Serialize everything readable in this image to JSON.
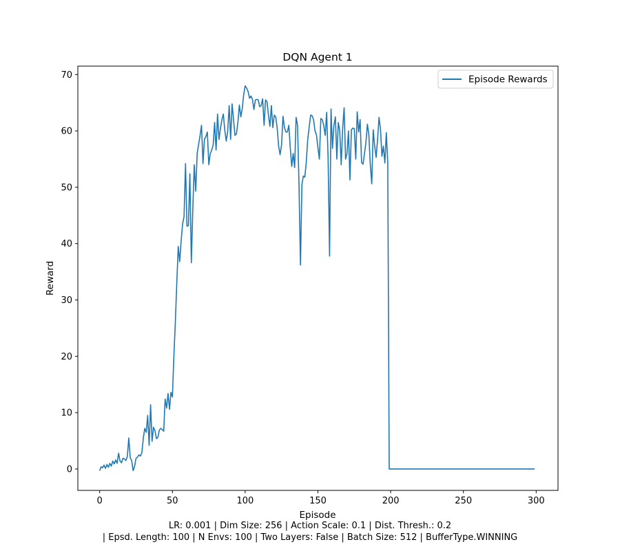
{
  "chart_data": {
    "type": "line",
    "title": "DQN Agent 1",
    "xlabel": "Episode",
    "ylabel": "Reward",
    "xlim": [
      -15,
      315
    ],
    "ylim": [
      -3.8,
      71.5
    ],
    "xticks": [
      0,
      50,
      100,
      150,
      200,
      250,
      300
    ],
    "yticks": [
      0,
      10,
      20,
      30,
      40,
      50,
      60,
      70
    ],
    "grid": false,
    "legend_position": "top-right",
    "series": [
      {
        "name": "Episode Rewards",
        "color": "#1f77b4",
        "points": [
          [
            0,
            -0.3
          ],
          [
            1,
            0.4
          ],
          [
            2,
            0.2
          ],
          [
            3,
            0.7
          ],
          [
            4,
            0.1
          ],
          [
            5,
            0.8
          ],
          [
            6,
            0.3
          ],
          [
            7,
            1.0
          ],
          [
            8,
            0.5
          ],
          [
            9,
            1.4
          ],
          [
            10,
            0.9
          ],
          [
            11,
            1.6
          ],
          [
            12,
            1.0
          ],
          [
            13,
            2.8
          ],
          [
            14,
            1.4
          ],
          [
            15,
            1.1
          ],
          [
            16,
            1.9
          ],
          [
            17,
            1.8
          ],
          [
            18,
            1.5
          ],
          [
            19,
            2.2
          ],
          [
            20,
            5.5
          ],
          [
            21,
            2.0
          ],
          [
            22,
            1.5
          ],
          [
            23,
            -0.3
          ],
          [
            24,
            0.5
          ],
          [
            25,
            1.9
          ],
          [
            26,
            2.1
          ],
          [
            27,
            2.5
          ],
          [
            28,
            2.3
          ],
          [
            29,
            2.9
          ],
          [
            30,
            5.5
          ],
          [
            31,
            7.2
          ],
          [
            32,
            6.5
          ],
          [
            33,
            9.5
          ],
          [
            34,
            4.2
          ],
          [
            35,
            11.4
          ],
          [
            36,
            4.9
          ],
          [
            37,
            7.4
          ],
          [
            38,
            6.8
          ],
          [
            39,
            5.4
          ],
          [
            40,
            5.6
          ],
          [
            41,
            6.9
          ],
          [
            42,
            7.2
          ],
          [
            43,
            7.0
          ],
          [
            44,
            6.7
          ],
          [
            45,
            12.4
          ],
          [
            46,
            10.8
          ],
          [
            47,
            13.4
          ],
          [
            48,
            10.6
          ],
          [
            49,
            13.6
          ],
          [
            50,
            12.8
          ],
          [
            51,
            20.0
          ],
          [
            52,
            26.0
          ],
          [
            53,
            33.0
          ],
          [
            54,
            39.5
          ],
          [
            55,
            36.8
          ],
          [
            56,
            40.5
          ],
          [
            57,
            43.5
          ],
          [
            58,
            44.8
          ],
          [
            59,
            54.2
          ],
          [
            60,
            43.1
          ],
          [
            61,
            43.2
          ],
          [
            62,
            52.4
          ],
          [
            63,
            36.6
          ],
          [
            64,
            46.0
          ],
          [
            65,
            54.0
          ],
          [
            66,
            49.3
          ],
          [
            67,
            56.0
          ],
          [
            68,
            57.6
          ],
          [
            69,
            59.2
          ],
          [
            70,
            61.0
          ],
          [
            71,
            54.2
          ],
          [
            72,
            58.5
          ],
          [
            73,
            59.0
          ],
          [
            74,
            59.8
          ],
          [
            75,
            54.0
          ],
          [
            76,
            56.0
          ],
          [
            77,
            56.6
          ],
          [
            78,
            57.5
          ],
          [
            79,
            61.5
          ],
          [
            80,
            56.6
          ],
          [
            81,
            63.0
          ],
          [
            82,
            58.5
          ],
          [
            83,
            60.4
          ],
          [
            84,
            62.0
          ],
          [
            85,
            63.0
          ],
          [
            86,
            60.1
          ],
          [
            87,
            58.2
          ],
          [
            88,
            60.0
          ],
          [
            89,
            64.5
          ],
          [
            90,
            58.5
          ],
          [
            91,
            64.8
          ],
          [
            92,
            62.0
          ],
          [
            93,
            59.2
          ],
          [
            94,
            59.5
          ],
          [
            95,
            61.5
          ],
          [
            96,
            64.6
          ],
          [
            97,
            62.5
          ],
          [
            98,
            64.0
          ],
          [
            99,
            66.5
          ],
          [
            100,
            68.0
          ],
          [
            101,
            67.6
          ],
          [
            102,
            67.0
          ],
          [
            103,
            65.8
          ],
          [
            104,
            66.2
          ],
          [
            105,
            65.6
          ],
          [
            106,
            63.8
          ],
          [
            107,
            65.5
          ],
          [
            108,
            65.6
          ],
          [
            109,
            65.5
          ],
          [
            110,
            64.3
          ],
          [
            111,
            64.5
          ],
          [
            112,
            65.7
          ],
          [
            113,
            61.0
          ],
          [
            114,
            65.5
          ],
          [
            115,
            65.2
          ],
          [
            116,
            62.8
          ],
          [
            117,
            60.8
          ],
          [
            118,
            64.5
          ],
          [
            119,
            60.6
          ],
          [
            120,
            62.8
          ],
          [
            121,
            62.5
          ],
          [
            122,
            60.5
          ],
          [
            123,
            57.3
          ],
          [
            124,
            55.8
          ],
          [
            125,
            57.5
          ],
          [
            126,
            62.6
          ],
          [
            127,
            60.6
          ],
          [
            128,
            59.8
          ],
          [
            129,
            59.8
          ],
          [
            130,
            61.0
          ],
          [
            131,
            57.0
          ],
          [
            132,
            53.7
          ],
          [
            133,
            56.0
          ],
          [
            134,
            53.5
          ],
          [
            135,
            62.4
          ],
          [
            136,
            61.0
          ],
          [
            137,
            50.4
          ],
          [
            138,
            36.2
          ],
          [
            139,
            50.5
          ],
          [
            140,
            52.0
          ],
          [
            141,
            51.8
          ],
          [
            142,
            54.5
          ],
          [
            143,
            58.5
          ],
          [
            144,
            60.7
          ],
          [
            145,
            62.8
          ],
          [
            146,
            62.7
          ],
          [
            147,
            62.0
          ],
          [
            148,
            60.0
          ],
          [
            149,
            59.3
          ],
          [
            150,
            57.0
          ],
          [
            151,
            55.0
          ],
          [
            152,
            62.2
          ],
          [
            153,
            62.0
          ],
          [
            154,
            61.0
          ],
          [
            155,
            59.2
          ],
          [
            156,
            63.3
          ],
          [
            157,
            55.2
          ],
          [
            158,
            37.8
          ],
          [
            159,
            63.9
          ],
          [
            160,
            56.9
          ],
          [
            161,
            61.0
          ],
          [
            162,
            62.5
          ],
          [
            163,
            55.0
          ],
          [
            164,
            61.5
          ],
          [
            165,
            60.0
          ],
          [
            166,
            54.0
          ],
          [
            167,
            60.5
          ],
          [
            168,
            64.1
          ],
          [
            169,
            55.0
          ],
          [
            170,
            56.0
          ],
          [
            171,
            60.0
          ],
          [
            172,
            51.3
          ],
          [
            173,
            60.2
          ],
          [
            174,
            60.5
          ],
          [
            175,
            60.4
          ],
          [
            176,
            55.0
          ],
          [
            177,
            63.4
          ],
          [
            178,
            59.8
          ],
          [
            179,
            62.0
          ],
          [
            180,
            54.4
          ],
          [
            181,
            54.1
          ],
          [
            182,
            56.0
          ],
          [
            183,
            58.0
          ],
          [
            184,
            61.2
          ],
          [
            185,
            59.3
          ],
          [
            186,
            54.0
          ],
          [
            187,
            50.6
          ],
          [
            188,
            60.2
          ],
          [
            189,
            57.3
          ],
          [
            190,
            55.3
          ],
          [
            191,
            58.5
          ],
          [
            192,
            62.4
          ],
          [
            193,
            60.3
          ],
          [
            194,
            55.5
          ],
          [
            195,
            57.3
          ],
          [
            196,
            54.3
          ],
          [
            197,
            59.7
          ],
          [
            198,
            54.3
          ],
          [
            199,
            0
          ],
          [
            200,
            0
          ],
          [
            250,
            0
          ],
          [
            299,
            0
          ]
        ]
      }
    ],
    "caption_lines": [
      "LR: 0.001 | Dim Size: 256 | Action Scale: 0.1 | Dist. Thresh.: 0.2",
      "| Epsd. Length: 100 | N Envs: 100 | Two Layers: False | Batch Size: 512 | BufferType.WINNING"
    ]
  }
}
